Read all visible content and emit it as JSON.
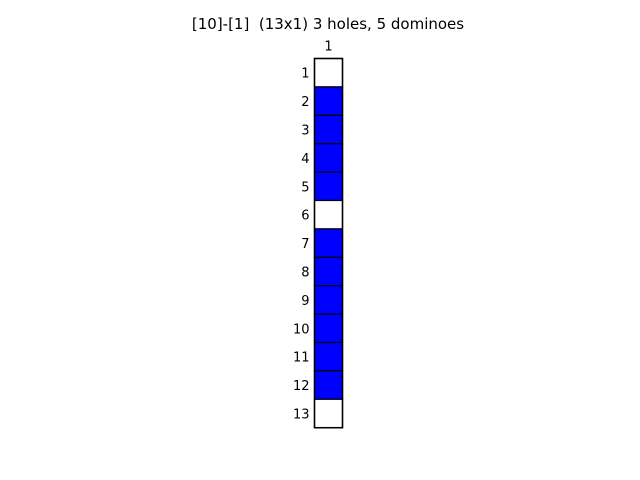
{
  "title": "[10]-[1]  (13x1) 3 holes, 5 dominoes",
  "grid": {
    "rows": 13,
    "cols": 1,
    "col_labels": [
      "1"
    ],
    "row_labels": [
      "1",
      "2",
      "3",
      "4",
      "5",
      "6",
      "7",
      "8",
      "9",
      "10",
      "11",
      "12",
      "13"
    ],
    "cells": [
      [
        "hole"
      ],
      [
        "filled"
      ],
      [
        "filled"
      ],
      [
        "filled"
      ],
      [
        "filled"
      ],
      [
        "hole"
      ],
      [
        "filled"
      ],
      [
        "filled"
      ],
      [
        "filled"
      ],
      [
        "filled"
      ],
      [
        "filled"
      ],
      [
        "filled"
      ],
      [
        "hole"
      ]
    ]
  },
  "colors": {
    "filled": "#0000ff",
    "hole": "#ffffff",
    "border": "#000000"
  }
}
